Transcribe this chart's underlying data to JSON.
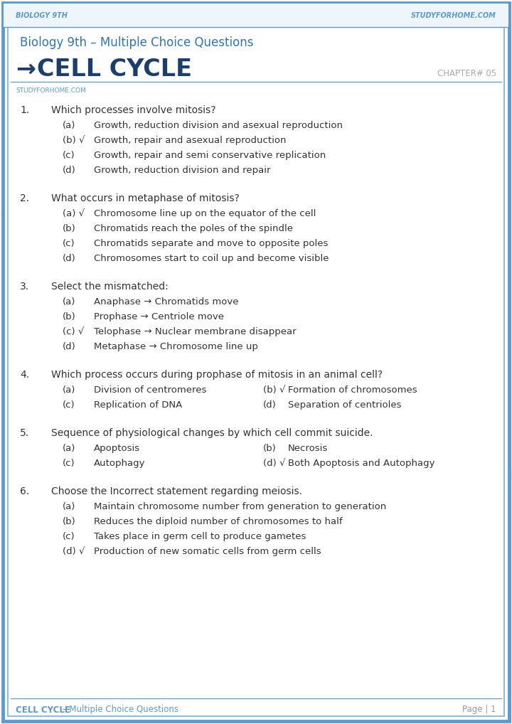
{
  "page_bg": "#ffffff",
  "outer_border_color": "#5b9bd5",
  "inner_border_color": "#7ab0d8",
  "header_text_color": "#5b9bd5",
  "header_left": "Biology 9th",
  "header_right": "StudyForHome.com",
  "subtitle": "Biology 9th – Multiple Choice Questions",
  "subtitle_color": "#2e75b6",
  "chapter_title": "CELL CYCLE",
  "chapter_title_color": "#1a3f6f",
  "chapter_arrow": "→",
  "chapter_num": "CHAPTER# 05",
  "chapter_num_color": "#aaaaaa",
  "watermark_text": "studyforhome.com",
  "source_label": "STUDYFORHOME.COM",
  "source_color": "#5b9bd5",
  "line_color": "#5b9bd5",
  "footer_left": "CELL CYCLE",
  "footer_dash": " – Multiple Choice Questions",
  "footer_right": "Page | 1",
  "footer_color": "#5b9bd5",
  "footer_right_color": "#999999",
  "text_color": "#333333",
  "questions": [
    {
      "num": "1.",
      "text": "Which processes involve mitosis?",
      "options": [
        {
          "label": "(a)",
          "text": "Growth, reduction division and asexual reproduction",
          "correct": false
        },
        {
          "label": "(b)",
          "text": "Growth, repair and asexual reproduction",
          "correct": true
        },
        {
          "label": "(c)",
          "text": "Growth, repair and semi conservative replication",
          "correct": false
        },
        {
          "label": "(d)",
          "text": "Growth, reduction division and repair",
          "correct": false
        }
      ],
      "layout": "vertical"
    },
    {
      "num": "2.",
      "text": "What occurs in metaphase of mitosis?",
      "options": [
        {
          "label": "(a)",
          "text": "Chromosome line up on the equator of the cell",
          "correct": true
        },
        {
          "label": "(b)",
          "text": "Chromatids reach the poles of the spindle",
          "correct": false
        },
        {
          "label": "(c)",
          "text": "Chromatids separate and move to opposite poles",
          "correct": false
        },
        {
          "label": "(d)",
          "text": "Chromosomes start to coil up and become visible",
          "correct": false
        }
      ],
      "layout": "vertical"
    },
    {
      "num": "3.",
      "text": "Select the mismatched:",
      "options": [
        {
          "label": "(a)",
          "text": "Anaphase → Chromatids move",
          "correct": false
        },
        {
          "label": "(b)",
          "text": "Prophase → Centriole move",
          "correct": false
        },
        {
          "label": "(c)",
          "text": "Telophase → Nuclear membrane disappear",
          "correct": true
        },
        {
          "label": "(d)",
          "text": "Metaphase → Chromosome line up",
          "correct": false
        }
      ],
      "layout": "vertical"
    },
    {
      "num": "4.",
      "text": "Which process occurs during prophase of mitosis in an animal cell?",
      "options": [
        {
          "label": "(a)",
          "text": "Division of centromeres",
          "correct": false
        },
        {
          "label": "(b)",
          "text": "Formation of chromosomes",
          "correct": true
        },
        {
          "label": "(c)",
          "text": "Replication of DNA",
          "correct": false
        },
        {
          "label": "(d)",
          "text": "Separation of centrioles",
          "correct": false
        }
      ],
      "layout": "horizontal"
    },
    {
      "num": "5.",
      "text": "Sequence of physiological changes by which cell commit suicide.",
      "options": [
        {
          "label": "(a)",
          "text": "Apoptosis",
          "correct": false
        },
        {
          "label": "(b)",
          "text": "Necrosis",
          "correct": false
        },
        {
          "label": "(c)",
          "text": "Autophagy",
          "correct": false
        },
        {
          "label": "(d)",
          "text": "Both Apoptosis and Autophagy",
          "correct": true
        }
      ],
      "layout": "horizontal"
    },
    {
      "num": "6.",
      "text": "Choose the Incorrect statement regarding meiosis.",
      "options": [
        {
          "label": "(a)",
          "text": "Maintain chromosome number from generation to generation",
          "correct": false
        },
        {
          "label": "(b)",
          "text": "Reduces the diploid number of chromosomes to half",
          "correct": false
        },
        {
          "label": "(c)",
          "text": "Takes place in germ cell to produce gametes",
          "correct": false
        },
        {
          "label": "(d)",
          "text": "Production of new somatic cells from germ cells",
          "correct": true
        }
      ],
      "layout": "vertical"
    }
  ]
}
